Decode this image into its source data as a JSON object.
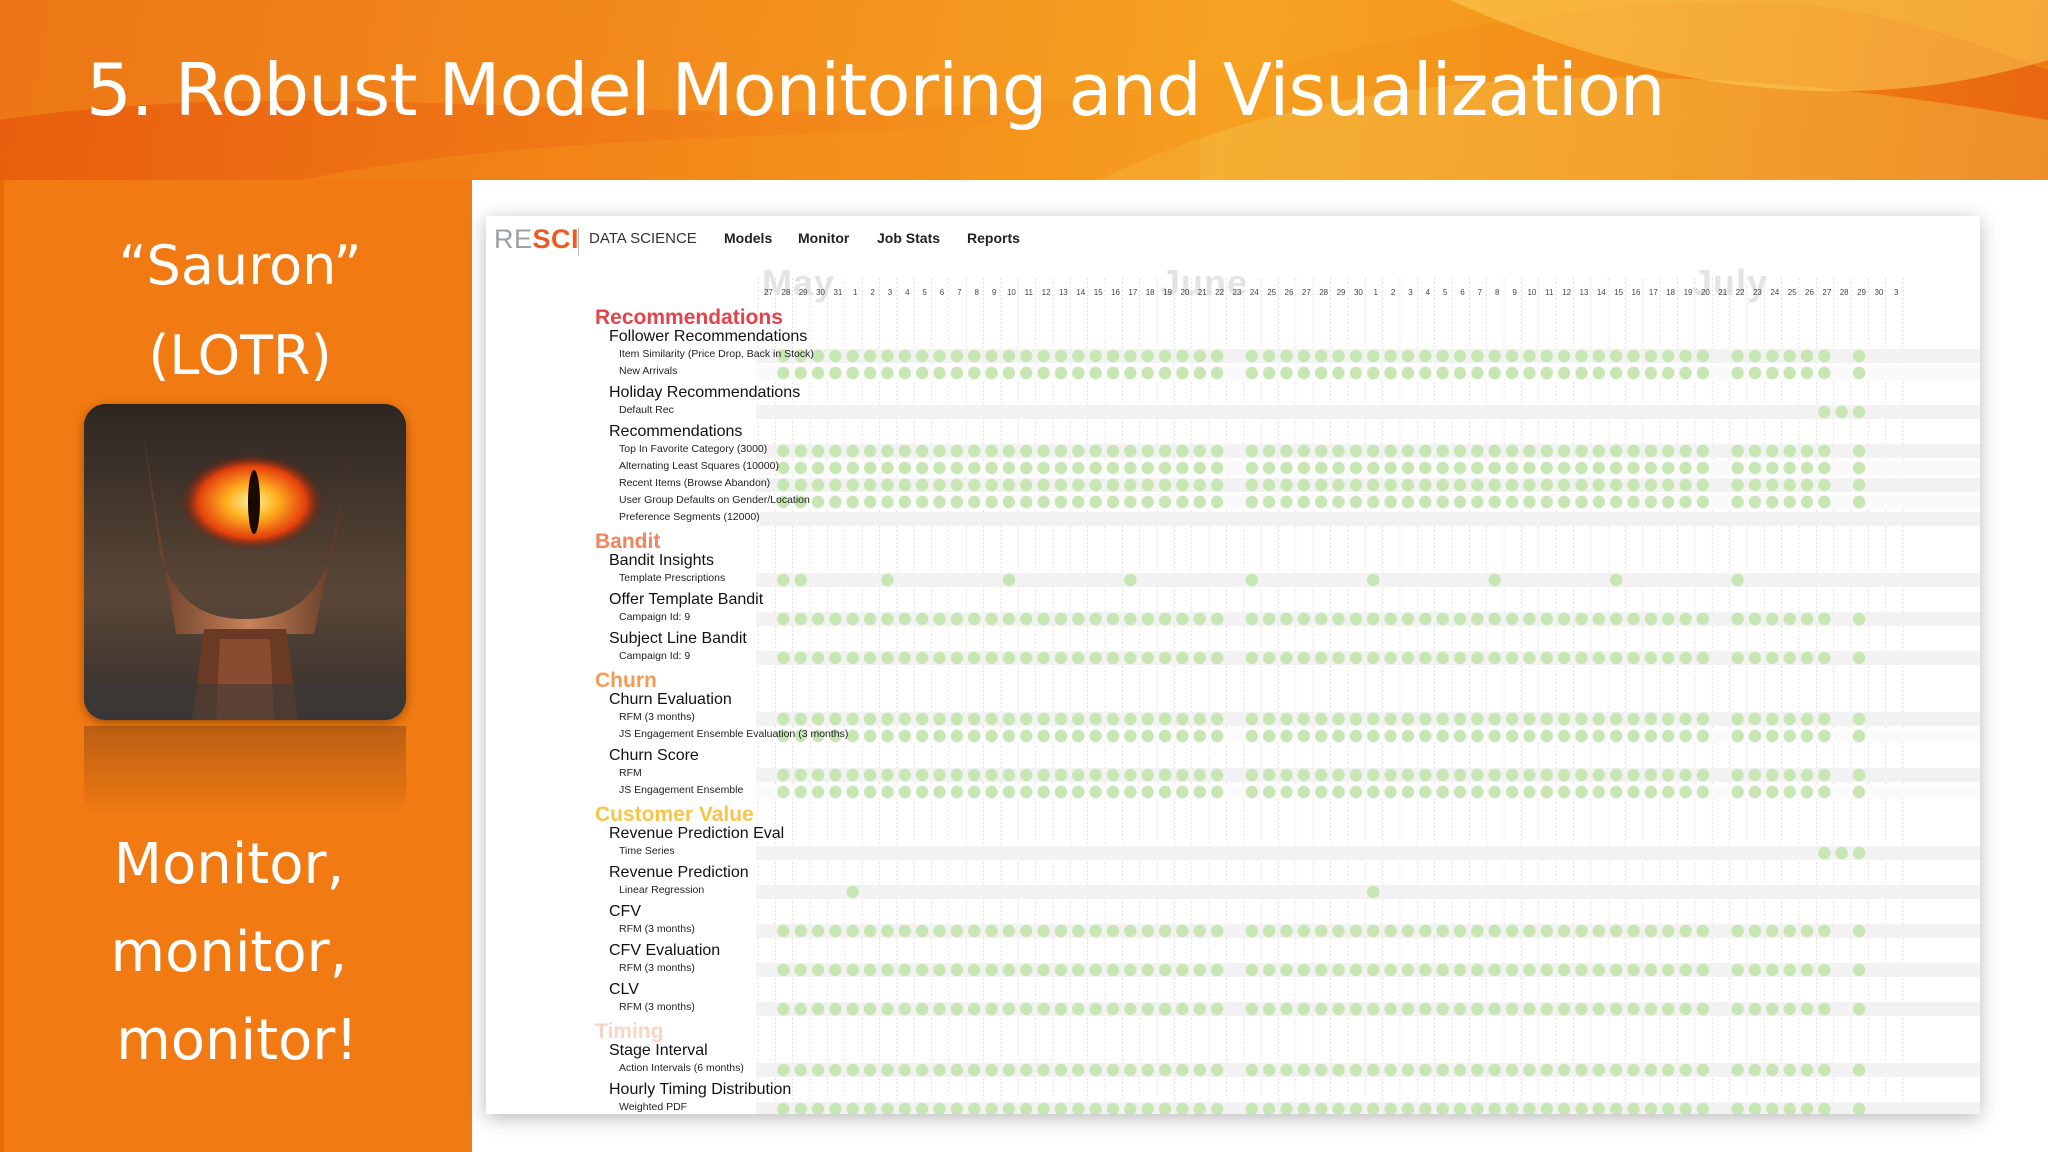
{
  "slide": {
    "title": "5. Robust Model Monitoring and Visualization",
    "quote_line1": "“Sauron”",
    "quote_line2": "(LOTR)",
    "callout_line1": "Monitor,",
    "callout_line2": "monitor,",
    "callout_line3": "monitor!",
    "image_icon": "eye-of-sauron-image",
    "colors": {
      "header": "#f07a16",
      "panel": "#f17a12",
      "text": "#ffffff"
    }
  },
  "dashboard": {
    "brand": {
      "logo_prefix": "RE",
      "logo_accent": "SCI",
      "subtitle": "DATA SCIENCE"
    },
    "nav": [
      "Models",
      "Monitor",
      "Job Stats",
      "Reports"
    ],
    "months": [
      "May",
      "June",
      "July"
    ],
    "days": [
      "27",
      "28",
      "29",
      "30",
      "31",
      "1",
      "2",
      "3",
      "4",
      "5",
      "6",
      "7",
      "8",
      "9",
      "10",
      "11",
      "12",
      "13",
      "14",
      "15",
      "16",
      "17",
      "18",
      "19",
      "20",
      "21",
      "22",
      "23",
      "24",
      "25",
      "26",
      "27",
      "28",
      "29",
      "30",
      "1",
      "2",
      "3",
      "4",
      "5",
      "6",
      "7",
      "8",
      "9",
      "10",
      "11",
      "12",
      "13",
      "14",
      "15",
      "16",
      "17",
      "18",
      "19",
      "20",
      "21",
      "22",
      "23",
      "24",
      "25",
      "26",
      "27",
      "28",
      "29",
      "30",
      "3"
    ],
    "colors": {
      "dot": "#c8e6b4",
      "stripe": "#f2f2f2",
      "divider": "#d0d0d0"
    },
    "categories": [
      {
        "name": "Recommendations",
        "color": "#e4434b",
        "models": [
          {
            "name": "Follower Recommendations",
            "variants": [
              {
                "label": "Item Similarity (Price Drop, Back in Stock)",
                "pattern": "full"
              },
              {
                "label": "New Arrivals",
                "pattern": "full"
              }
            ]
          },
          {
            "name": "Holiday Recommendations",
            "variants": [
              {
                "label": "Default Rec",
                "pattern": "recent"
              }
            ]
          },
          {
            "name": "Recommendations",
            "variants": [
              {
                "label": "Top In Favorite Category (3000)",
                "pattern": "full"
              },
              {
                "label": "Alternating Least Squares (10000)",
                "pattern": "full"
              },
              {
                "label": "Recent Items (Browse Abandon)",
                "pattern": "full"
              },
              {
                "label": "User Group Defaults on Gender/Location",
                "pattern": "full"
              },
              {
                "label": "Preference Segments (12000)",
                "pattern": "none"
              }
            ]
          }
        ]
      },
      {
        "name": "Bandit",
        "color": "#f4845a",
        "models": [
          {
            "name": "Bandit Insights",
            "variants": [
              {
                "label": "Template Prescriptions",
                "pattern": "weekly"
              }
            ]
          },
          {
            "name": "Offer Template Bandit",
            "variants": [
              {
                "label": "Campaign Id: 9",
                "pattern": "full"
              }
            ]
          },
          {
            "name": "Subject Line Bandit",
            "variants": [
              {
                "label": "Campaign Id: 9",
                "pattern": "full"
              }
            ]
          }
        ]
      },
      {
        "name": "Churn",
        "color": "#f59a54",
        "models": [
          {
            "name": "Churn Evaluation",
            "variants": [
              {
                "label": "RFM (3 months)",
                "pattern": "full"
              },
              {
                "label": "JS Engagement Ensemble Evaluation (3 months)",
                "pattern": "full"
              }
            ]
          },
          {
            "name": "Churn Score",
            "variants": [
              {
                "label": "RFM",
                "pattern": "full"
              },
              {
                "label": "JS Engagement Ensemble",
                "pattern": "full"
              }
            ]
          }
        ]
      },
      {
        "name": "Customer Value",
        "color": "#f8c548",
        "models": [
          {
            "name": "Revenue Prediction Eval",
            "variants": [
              {
                "label": "Time Series",
                "pattern": "recent"
              }
            ]
          },
          {
            "name": "Revenue Prediction",
            "variants": [
              {
                "label": "Linear Regression",
                "pattern": "monthly"
              }
            ]
          },
          {
            "name": "CFV",
            "variants": [
              {
                "label": "RFM (3 months)",
                "pattern": "full"
              }
            ]
          },
          {
            "name": "CFV Evaluation",
            "variants": [
              {
                "label": "RFM (3 months)",
                "pattern": "full"
              }
            ]
          },
          {
            "name": "CLV",
            "variants": [
              {
                "label": "RFM (3 months)",
                "pattern": "full"
              }
            ]
          }
        ]
      },
      {
        "name": "Timing",
        "color": "#fbd3c4",
        "models": [
          {
            "name": "Stage Interval",
            "variants": [
              {
                "label": "Action Intervals (6 months)",
                "pattern": "full"
              }
            ]
          },
          {
            "name": "Hourly Timing Distribution",
            "variants": [
              {
                "label": "Weighted PDF",
                "pattern": "full"
              }
            ]
          }
        ]
      }
    ]
  }
}
